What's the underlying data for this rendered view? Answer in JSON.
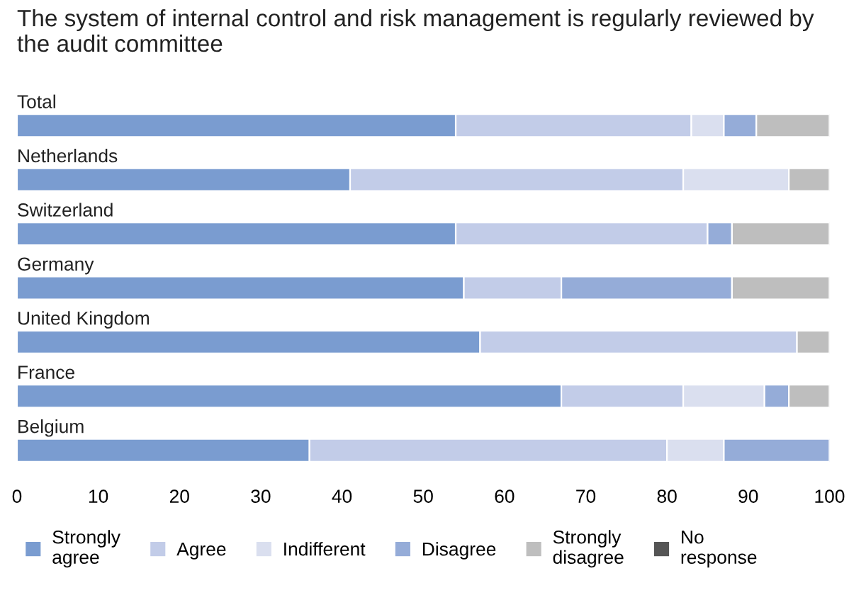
{
  "chart_data": {
    "type": "bar",
    "orientation": "horizontal",
    "stacked": true,
    "title": "The system of internal control and risk management is regularly reviewed by the audit committee",
    "categories": [
      "Total",
      "Netherlands",
      "Switzerland",
      "Germany",
      "United Kingdom",
      "France",
      "Belgium"
    ],
    "series": [
      {
        "name": "Strongly agree",
        "color": "#7a9cd0",
        "values": [
          54,
          41,
          54,
          55,
          57,
          67,
          36
        ]
      },
      {
        "name": "Agree",
        "color": "#c2cce8",
        "values": [
          29,
          41,
          31,
          12,
          39,
          15,
          44
        ]
      },
      {
        "name": "Indifferent",
        "color": "#dadfef",
        "values": [
          4,
          13,
          0,
          0,
          0,
          10,
          7
        ]
      },
      {
        "name": "Disagree",
        "color": "#95acd8",
        "values": [
          4,
          0,
          3,
          21,
          0,
          3,
          13
        ]
      },
      {
        "name": "Strongly disagree",
        "color": "#bebebe",
        "values": [
          9,
          5,
          12,
          12,
          4,
          5,
          0
        ]
      },
      {
        "name": "No response",
        "color": "#555555",
        "values": [
          0,
          0,
          0,
          0,
          0,
          0,
          0
        ]
      }
    ],
    "xlim": [
      0,
      100
    ],
    "xticks": [
      0,
      10,
      20,
      30,
      40,
      50,
      60,
      70,
      80,
      90,
      100
    ],
    "grid": false,
    "legend": "bottom"
  }
}
